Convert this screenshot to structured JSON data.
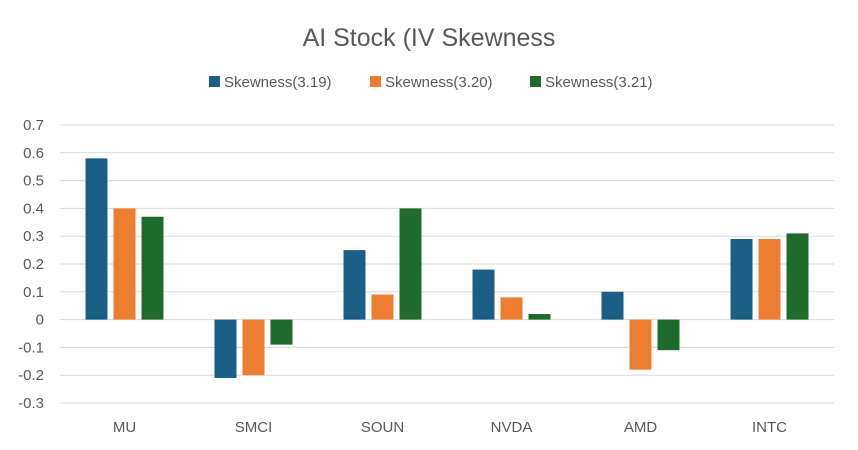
{
  "chart_data": {
    "type": "bar",
    "title": "AI Stock (IV Skewness",
    "xlabel": "",
    "ylabel": "",
    "categories": [
      "MU",
      "SMCI",
      "SOUN",
      "NVDA",
      "AMD",
      "INTC"
    ],
    "series": [
      {
        "name": "Skewness(3.19)",
        "color": "#1b5e86",
        "values": [
          0.58,
          -0.21,
          0.25,
          0.18,
          0.1,
          0.29
        ]
      },
      {
        "name": "Skewness(3.20)",
        "color": "#ed7d31",
        "values": [
          0.4,
          -0.2,
          0.09,
          0.08,
          -0.18,
          0.29
        ]
      },
      {
        "name": "Skewness(3.21)",
        "color": "#1e6b2c",
        "values": [
          0.37,
          -0.09,
          0.4,
          0.02,
          -0.11,
          0.31
        ]
      }
    ],
    "ylim": [
      -0.3,
      0.7
    ],
    "yticks": [
      "0.7",
      "0.6",
      "0.5",
      "0.4",
      "0.3",
      "0.2",
      "0.1",
      "0",
      "-0.1",
      "-0.2",
      "-0.3"
    ],
    "grid": true,
    "legend_position": "top"
  }
}
